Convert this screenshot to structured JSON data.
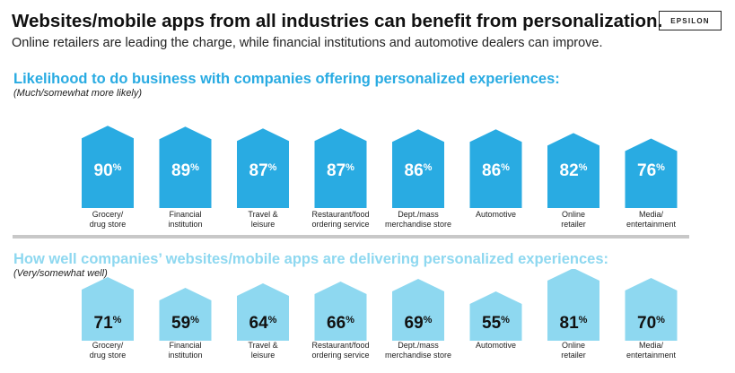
{
  "header": {
    "title": "Websites/mobile apps from all industries can benefit from personalization.",
    "subtitle": "Online retailers are leading the charge, while financial institutions and automotive dealers can improve.",
    "logo": "EPSILON"
  },
  "section1": {
    "title": "Likelihood to do business with companies offering personalized experiences:",
    "subtitle": "(Much/somewhat more likely)"
  },
  "section2": {
    "title": "How well companies’ websites/mobile apps are delivering personalized experiences:",
    "subtitle": "(Very/somewhat well)"
  },
  "colors": {
    "dark": "#29ABE2",
    "light": "#8ED8F0"
  },
  "chart_data": [
    {
      "type": "bar",
      "title": "Likelihood to do business with companies offering personalized experiences:",
      "categories": [
        [
          "Grocery/",
          "drug store"
        ],
        [
          "Financial",
          "institution"
        ],
        [
          "Travel &",
          "leisure"
        ],
        [
          "Restaurant/food",
          "ordering service"
        ],
        [
          "Dept./mass",
          "merchandise store"
        ],
        [
          "Automotive"
        ],
        [
          "Online",
          "retailer"
        ],
        [
          "Media/",
          "entertainment"
        ]
      ],
      "values": [
        90,
        89,
        87,
        87,
        86,
        86,
        82,
        76
      ],
      "unit": "%",
      "color": "#29ABE2",
      "label_color": "#ffffff"
    },
    {
      "type": "bar",
      "title": "How well companies’ websites/mobile apps are delivering personalized experiences:",
      "categories": [
        [
          "Grocery/",
          "drug store"
        ],
        [
          "Financial",
          "institution"
        ],
        [
          "Travel &",
          "leisure"
        ],
        [
          "Restaurant/food",
          "ordering service"
        ],
        [
          "Dept./mass",
          "merchandise store"
        ],
        [
          "Automotive"
        ],
        [
          "Online",
          "retailer"
        ],
        [
          "Media/",
          "entertainment"
        ]
      ],
      "values": [
        71,
        59,
        64,
        66,
        69,
        55,
        81,
        70
      ],
      "unit": "%",
      "color": "#8ED8F0",
      "label_color": "#111111"
    }
  ]
}
